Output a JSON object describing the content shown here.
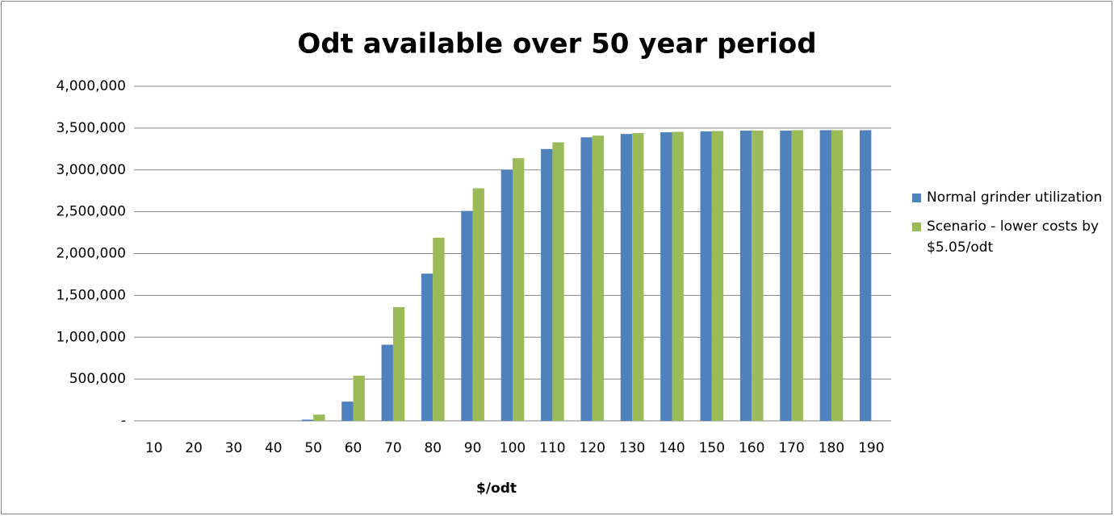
{
  "chart_data": {
    "type": "bar",
    "title": "Odt available over 50 year period",
    "x_label": "$/odt",
    "categories": [
      "10",
      "20",
      "30",
      "40",
      "50",
      "60",
      "70",
      "80",
      "90",
      "100",
      "110",
      "120",
      "130",
      "140",
      "150",
      "160",
      "170",
      "180",
      "190"
    ],
    "series": [
      {
        "name": "Normal grinder utilization",
        "color": "#4f81bd",
        "values": [
          0,
          0,
          0,
          0,
          15000,
          230000,
          910000,
          1760000,
          2510000,
          3000000,
          3250000,
          3390000,
          3430000,
          3450000,
          3460000,
          3470000,
          3470000,
          3475000,
          3475000
        ]
      },
      {
        "name": "Scenario - lower costs by $5.05/odt",
        "color": "#9bbb59",
        "values": [
          0,
          0,
          0,
          0,
          75000,
          540000,
          1360000,
          2190000,
          2780000,
          3140000,
          3330000,
          3410000,
          3440000,
          3455000,
          3465000,
          3470000,
          3475000,
          3475000,
          null
        ]
      }
    ],
    "ylim": [
      0,
      4000000
    ],
    "yticks": [
      {
        "value": 0,
        "label": "-"
      },
      {
        "value": 500000,
        "label": "500,000"
      },
      {
        "value": 1000000,
        "label": "1,000,000"
      },
      {
        "value": 1500000,
        "label": "1,500,000"
      },
      {
        "value": 2000000,
        "label": "2,000,000"
      },
      {
        "value": 2500000,
        "label": "2,500,000"
      },
      {
        "value": 3000000,
        "label": "3,000,000"
      },
      {
        "value": 3500000,
        "label": "3,500,000"
      },
      {
        "value": 4000000,
        "label": "4,000,000"
      }
    ],
    "grid": true,
    "legend": "right"
  }
}
